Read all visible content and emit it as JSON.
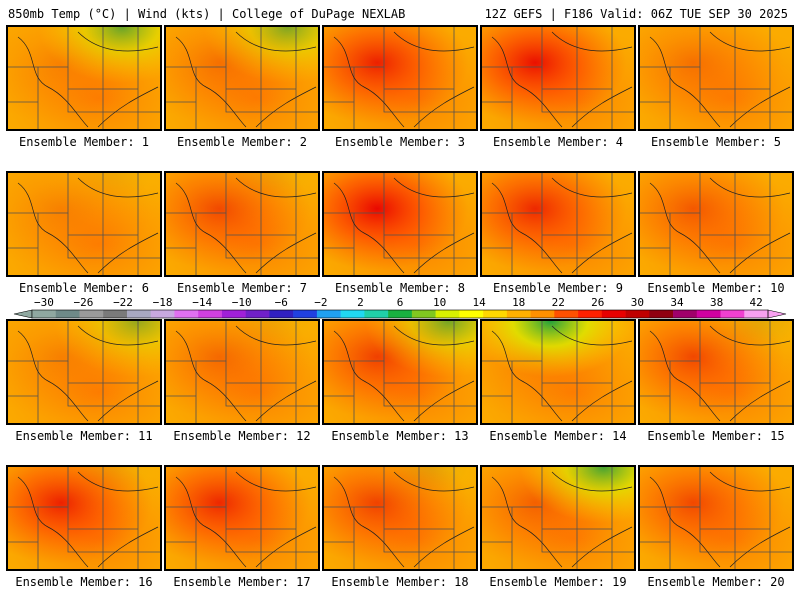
{
  "header": {
    "left": "850mb Temp (°C) | Wind (kts) | College of DuPage NEXLAB",
    "right": "12Z GEFS | F186 Valid: 06Z TUE SEP 30 2025"
  },
  "panel_label_prefix": "Ensemble Member: ",
  "panels": [
    {
      "member": 1,
      "hot": 0.2,
      "cool": 0.65,
      "cool_x": 0.75
    },
    {
      "member": 2,
      "hot": 0.3,
      "cool": 0.55,
      "cool_x": 0.8
    },
    {
      "member": 3,
      "hot": 0.8,
      "cool": 0.0,
      "cool_x": 0.7
    },
    {
      "member": 4,
      "hot": 0.9,
      "cool": 0.0,
      "cool_x": 0.7
    },
    {
      "member": 5,
      "hot": 0.3,
      "cool": 0.0,
      "cool_x": 0.7
    },
    {
      "member": 6,
      "hot": 0.2,
      "cool": 0.05,
      "cool_x": 0.7
    },
    {
      "member": 7,
      "hot": 0.55,
      "cool": 0.05,
      "cool_x": 0.7
    },
    {
      "member": 8,
      "hot": 0.95,
      "cool": 0.0,
      "cool_x": 0.7
    },
    {
      "member": 9,
      "hot": 0.75,
      "cool": 0.0,
      "cool_x": 0.7
    },
    {
      "member": 10,
      "hot": 0.45,
      "cool": 0.0,
      "cool_x": 0.7
    },
    {
      "member": 11,
      "hot": 0.2,
      "cool": 0.45,
      "cool_x": 0.85
    },
    {
      "member": 12,
      "hot": 0.35,
      "cool": 0.05,
      "cool_x": 0.7
    },
    {
      "member": 13,
      "hot": 0.6,
      "cool": 0.6,
      "cool_x": 0.82
    },
    {
      "member": 14,
      "hot": 0.2,
      "cool": 0.95,
      "cool_x": 0.45
    },
    {
      "member": 15,
      "hot": 0.55,
      "cool": 0.1,
      "cool_x": 0.8
    },
    {
      "member": 16,
      "hot": 0.8,
      "cool": 0.05,
      "cool_x": 0.7
    },
    {
      "member": 17,
      "hot": 0.75,
      "cool": 0.0,
      "cool_x": 0.7
    },
    {
      "member": 18,
      "hot": 0.6,
      "cool": 0.1,
      "cool_x": 0.7
    },
    {
      "member": 19,
      "hot": 0.4,
      "cool": 0.8,
      "cool_x": 0.8
    },
    {
      "member": 20,
      "hot": 0.55,
      "cool": 0.0,
      "cool_x": 0.7
    }
  ],
  "colorbar": {
    "tick_labels": [
      "−30",
      "−26",
      "−22",
      "−18",
      "−14",
      "−10",
      "−6",
      "−2",
      "2",
      "6",
      "10",
      "14",
      "18",
      "22",
      "26",
      "30",
      "34",
      "38",
      "42"
    ],
    "colors": [
      "#8fa8a0",
      "#6e8a88",
      "#9a9a9a",
      "#7a7a7a",
      "#a8a8c0",
      "#c8a8e0",
      "#e070f0",
      "#d040e0",
      "#a020d8",
      "#7020c8",
      "#3020c0",
      "#2040e0",
      "#20a0f0",
      "#20d8f0",
      "#20d0a8",
      "#18b040",
      "#80c820",
      "#d8f000",
      "#ffff00",
      "#ffd800",
      "#ffb000",
      "#ff9000",
      "#ff5000",
      "#ff2000",
      "#e80000",
      "#c00000",
      "#900010",
      "#a0006a",
      "#d000a0",
      "#f040d0",
      "#f8a0f0"
    ]
  }
}
